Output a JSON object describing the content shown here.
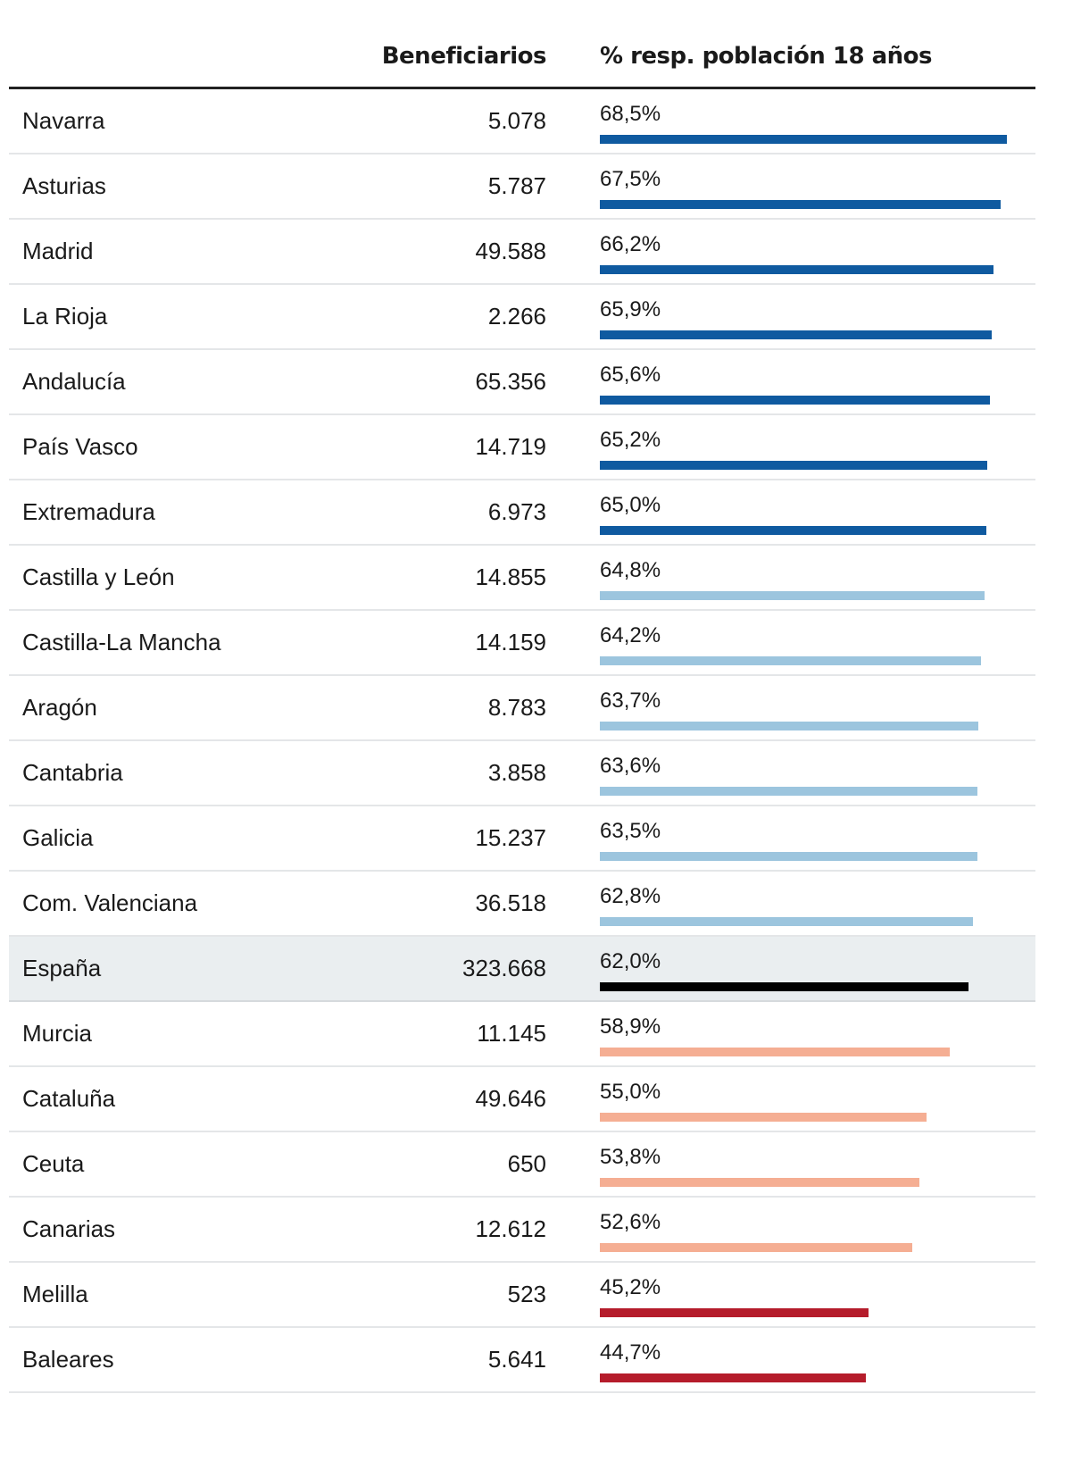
{
  "header": {
    "col_name": "",
    "col_benef": "Beneficiarios",
    "col_pct": "% resp. población 18 años"
  },
  "colors": {
    "high": "#0f5aa0",
    "mid_high": "#9cc5de",
    "average": "#000000",
    "mid_low": "#f5ae93",
    "low": "#b51c2b",
    "highlight_row": "#eaeef0"
  },
  "chart_data": {
    "type": "table",
    "columns": [
      "",
      "Beneficiarios",
      "% resp. población 18 años"
    ],
    "bar_scale_max": 69,
    "rows": [
      {
        "name": "Navarra",
        "beneficiarios": "5.078",
        "pct_label": "68,5%",
        "pct": 68.5,
        "group": "high"
      },
      {
        "name": "Asturias",
        "beneficiarios": "5.787",
        "pct_label": "67,5%",
        "pct": 67.5,
        "group": "high"
      },
      {
        "name": "Madrid",
        "beneficiarios": "49.588",
        "pct_label": "66,2%",
        "pct": 66.2,
        "group": "high"
      },
      {
        "name": "La Rioja",
        "beneficiarios": "2.266",
        "pct_label": "65,9%",
        "pct": 65.9,
        "group": "high"
      },
      {
        "name": "Andalucía",
        "beneficiarios": "65.356",
        "pct_label": "65,6%",
        "pct": 65.6,
        "group": "high"
      },
      {
        "name": "País Vasco",
        "beneficiarios": "14.719",
        "pct_label": "65,2%",
        "pct": 65.2,
        "group": "high"
      },
      {
        "name": "Extremadura",
        "beneficiarios": "6.973",
        "pct_label": "65,0%",
        "pct": 65.0,
        "group": "high"
      },
      {
        "name": "Castilla y León",
        "beneficiarios": "14.855",
        "pct_label": "64,8%",
        "pct": 64.8,
        "group": "mid_high"
      },
      {
        "name": "Castilla-La Mancha",
        "beneficiarios": "14.159",
        "pct_label": "64,2%",
        "pct": 64.2,
        "group": "mid_high"
      },
      {
        "name": "Aragón",
        "beneficiarios": "8.783",
        "pct_label": "63,7%",
        "pct": 63.7,
        "group": "mid_high"
      },
      {
        "name": "Cantabria",
        "beneficiarios": "3.858",
        "pct_label": "63,6%",
        "pct": 63.6,
        "group": "mid_high"
      },
      {
        "name": "Galicia",
        "beneficiarios": "15.237",
        "pct_label": "63,5%",
        "pct": 63.5,
        "group": "mid_high"
      },
      {
        "name": "Com. Valenciana",
        "beneficiarios": "36.518",
        "pct_label": "62,8%",
        "pct": 62.8,
        "group": "mid_high"
      },
      {
        "name": "España",
        "beneficiarios": "323.668",
        "pct_label": "62,0%",
        "pct": 62.0,
        "group": "average",
        "highlight": true
      },
      {
        "name": "Murcia",
        "beneficiarios": "11.145",
        "pct_label": "58,9%",
        "pct": 58.9,
        "group": "mid_low"
      },
      {
        "name": "Cataluña",
        "beneficiarios": "49.646",
        "pct_label": "55,0%",
        "pct": 55.0,
        "group": "mid_low"
      },
      {
        "name": "Ceuta",
        "beneficiarios": "650",
        "pct_label": "53,8%",
        "pct": 53.8,
        "group": "mid_low"
      },
      {
        "name": "Canarias",
        "beneficiarios": "12.612",
        "pct_label": "52,6%",
        "pct": 52.6,
        "group": "mid_low"
      },
      {
        "name": "Melilla",
        "beneficiarios": "523",
        "pct_label": "45,2%",
        "pct": 45.2,
        "group": "low"
      },
      {
        "name": "Baleares",
        "beneficiarios": "5.641",
        "pct_label": "44,7%",
        "pct": 44.7,
        "group": "low"
      }
    ]
  }
}
